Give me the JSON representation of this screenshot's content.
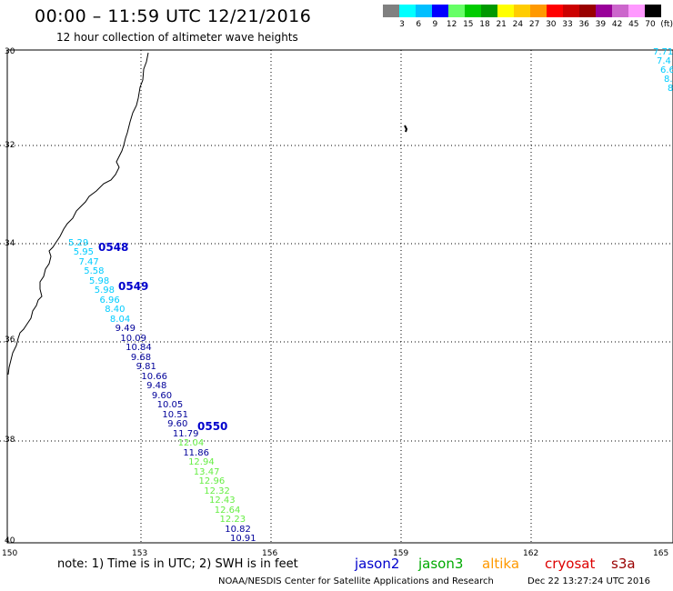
{
  "title": "00:00 – 11:59 UTC 12/21/2016",
  "subtitle": "12 hour collection of altimeter wave heights",
  "colorbar": {
    "colors": [
      "#808080",
      "#00ffff",
      "#00bfff",
      "#0000ff",
      "#66ff66",
      "#00cc00",
      "#009900",
      "#ffff00",
      "#ffcc00",
      "#ff9900",
      "#ff0000",
      "#cc0000",
      "#990000",
      "#990099",
      "#cc66cc",
      "#ff99ff",
      "#000000"
    ],
    "labels": [
      "3",
      "6",
      "9",
      "12",
      "15",
      "18",
      "21",
      "24",
      "27",
      "30",
      "33",
      "36",
      "39",
      "42",
      "45",
      "70",
      "(ft)"
    ]
  },
  "axes": {
    "lat_labels": [
      "30",
      "32",
      "34",
      "36",
      "38",
      "40"
    ],
    "lon_labels": [
      "150",
      "153",
      "156",
      "159",
      "162",
      "165"
    ]
  },
  "passes": [
    "0548",
    "0549",
    "0550"
  ],
  "main_track": [
    {
      "v": "5.29",
      "c": "#00ccff"
    },
    {
      "v": "5.95",
      "c": "#00ccff"
    },
    {
      "v": "7.47",
      "c": "#00ccff"
    },
    {
      "v": "5.58",
      "c": "#00ccff"
    },
    {
      "v": "5.98",
      "c": "#00ccff"
    },
    {
      "v": "5.98",
      "c": "#00ccff"
    },
    {
      "v": "6.96",
      "c": "#00ccff"
    },
    {
      "v": "8.40",
      "c": "#00ccff"
    },
    {
      "v": "8.04",
      "c": "#00ccff"
    },
    {
      "v": "9.49",
      "c": "#000099"
    },
    {
      "v": "10.09",
      "c": "#000099"
    },
    {
      "v": "10.84",
      "c": "#000099"
    },
    {
      "v": "9.68",
      "c": "#000099"
    },
    {
      "v": "9.81",
      "c": "#000099"
    },
    {
      "v": "10.66",
      "c": "#000099"
    },
    {
      "v": "9.48",
      "c": "#000099"
    },
    {
      "v": "9.60",
      "c": "#000099"
    },
    {
      "v": "10.05",
      "c": "#000099"
    },
    {
      "v": "10.51",
      "c": "#000099"
    },
    {
      "v": "9.60",
      "c": "#000099"
    },
    {
      "v": "11.79",
      "c": "#000099"
    },
    {
      "v": "12.04",
      "c": "#66ee44"
    },
    {
      "v": "11.86",
      "c": "#000099"
    },
    {
      "v": "12.94",
      "c": "#66ee44"
    },
    {
      "v": "13.47",
      "c": "#66ee44"
    },
    {
      "v": "12.96",
      "c": "#66ee44"
    },
    {
      "v": "12.32",
      "c": "#66ee44"
    },
    {
      "v": "12.43",
      "c": "#66ee44"
    },
    {
      "v": "12.64",
      "c": "#66ee44"
    },
    {
      "v": "12.23",
      "c": "#66ee44"
    },
    {
      "v": "10.82",
      "c": "#000099"
    },
    {
      "v": "10.91",
      "c": "#000099"
    }
  ],
  "corner_track": [
    {
      "v": "7.71",
      "c": "#00ccff"
    },
    {
      "v": "7.4",
      "c": "#00ccff"
    },
    {
      "v": "6.6",
      "c": "#00ccff"
    },
    {
      "v": "8.",
      "c": "#00ccff"
    },
    {
      "v": "8",
      "c": "#00ccff"
    }
  ],
  "note": "note: 1) Time is in UTC; 2) SWH is in feet",
  "satellites": [
    {
      "name": "jason2",
      "color": "#0000cc"
    },
    {
      "name": "jason3",
      "color": "#00aa00"
    },
    {
      "name": "altika",
      "color": "#ff9900"
    },
    {
      "name": "cryosat",
      "color": "#dd0000"
    },
    {
      "name": "s3a",
      "color": "#990000"
    }
  ],
  "footer_left": "NOAA/NESDIS Center for Satellite Applications and Research",
  "footer_right": "Dec 22 13:27:24 UTC 2016"
}
